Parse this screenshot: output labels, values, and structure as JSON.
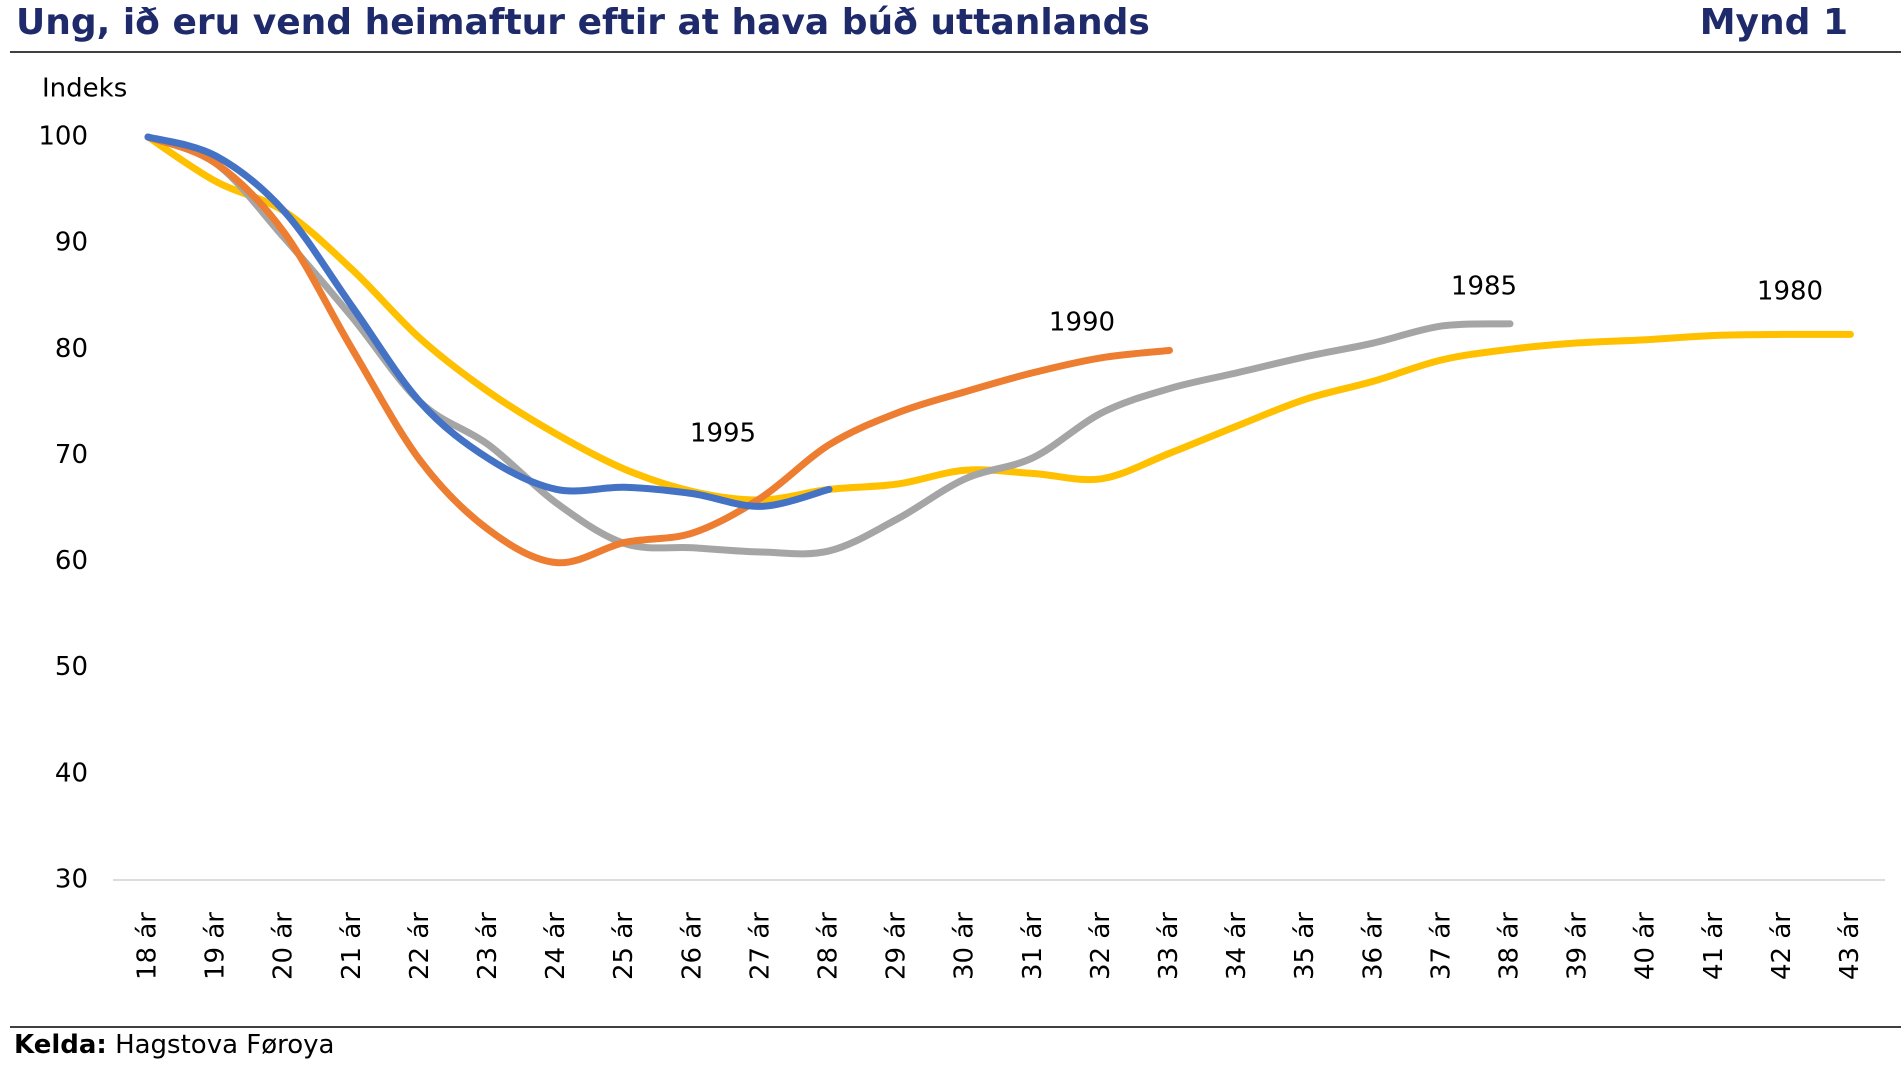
{
  "chart_data": {
    "type": "line",
    "title": "Ung, ið eru vend heimaftur eftir at hava búð uttanlands",
    "figure_label": "Mynd 1",
    "y_axis_label": "Indeks",
    "source_label": "Kelda:",
    "source": "Hagstova Føroya",
    "categories": [
      "18 ár",
      "19 ár",
      "20 ár",
      "21 ár",
      "22 ár",
      "23 ár",
      "24 ár",
      "25 ár",
      "26 ár",
      "27 ár",
      "28 ár",
      "29 ár",
      "30 ár",
      "31 ár",
      "32 ár",
      "33 ár",
      "34 ár",
      "35 ár",
      "36 ár",
      "37 ár",
      "38 ár",
      "39 ár",
      "40 ár",
      "41 ár",
      "42 ár",
      "43 ár"
    ],
    "ylim": [
      30,
      100
    ],
    "yticks": [
      30,
      40,
      50,
      60,
      70,
      80,
      90,
      100
    ],
    "series": [
      {
        "name": "1980",
        "color": "#ffc000",
        "label_color": "#bf9000",
        "values": [
          100,
          95.8,
          93,
          87.5,
          81,
          76,
          72,
          68.7,
          66.6,
          65.8,
          66.8,
          67.3,
          68.6,
          68.3,
          67.8,
          70.2,
          72.8,
          75.3,
          77,
          79,
          80,
          80.6,
          80.9,
          81.3,
          81.4,
          81.4
        ]
      },
      {
        "name": "1985",
        "color": "#a5a5a5",
        "label_color": "#7f7f7f",
        "values": [
          100,
          97.5,
          90.5,
          83,
          75,
          71,
          65.5,
          61.7,
          61.3,
          60.9,
          61,
          64,
          67.8,
          69.8,
          74,
          76.3,
          77.8,
          79.3,
          80.6,
          82.2,
          82.4,
          null,
          null,
          null,
          null,
          null
        ]
      },
      {
        "name": "1990",
        "color": "#ed7d31",
        "label_color": "#c55a11",
        "values": [
          100,
          97.5,
          91,
          80,
          69.5,
          63,
          59.9,
          61.8,
          62.7,
          66,
          71,
          74,
          76,
          77.8,
          79.2,
          79.9,
          null,
          null,
          null,
          null,
          null,
          null,
          null,
          null,
          null,
          null
        ]
      },
      {
        "name": "1995",
        "color": "#4472c4",
        "label_color": "#2e75b6",
        "values": [
          100,
          98.2,
          93,
          84,
          75,
          69.7,
          66.8,
          67,
          66.4,
          65.2,
          66.8,
          null,
          null,
          null,
          null,
          null,
          null,
          null,
          null,
          null,
          null,
          null,
          null,
          null,
          null,
          null
        ]
      }
    ]
  }
}
